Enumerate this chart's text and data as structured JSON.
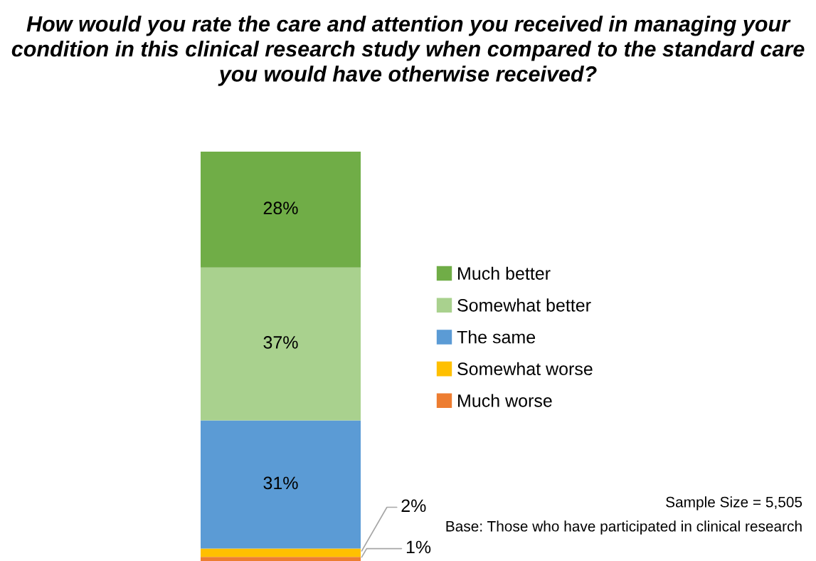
{
  "chart_data": {
    "type": "bar",
    "stacked": true,
    "legend": "right",
    "title": "How would you rate the care and attention you received in managing your condition in this clinical research study when compared to the standard care you would have otherwise received?",
    "categories": [
      null
    ],
    "series": [
      {
        "name": "Much worse",
        "color": "#ed7d31",
        "values": [
          1
        ],
        "value_labels": [
          "1%"
        ]
      },
      {
        "name": "Somewhat worse",
        "color": "#ffc000",
        "values": [
          2
        ],
        "value_labels": [
          "2%"
        ]
      },
      {
        "name": "The same",
        "color": "#5b9bd5",
        "values": [
          31
        ],
        "value_labels": [
          "31%"
        ]
      },
      {
        "name": "Somewhat better",
        "color": "#a9d18e",
        "values": [
          37
        ],
        "value_labels": [
          "37%"
        ]
      },
      {
        "name": "Much better",
        "color": "#70ad47",
        "values": [
          28
        ],
        "value_labels": [
          "28%"
        ]
      }
    ],
    "annotations": [
      "Sample Size = 5,505",
      "Base: Those who have participated in clinical research"
    ]
  }
}
